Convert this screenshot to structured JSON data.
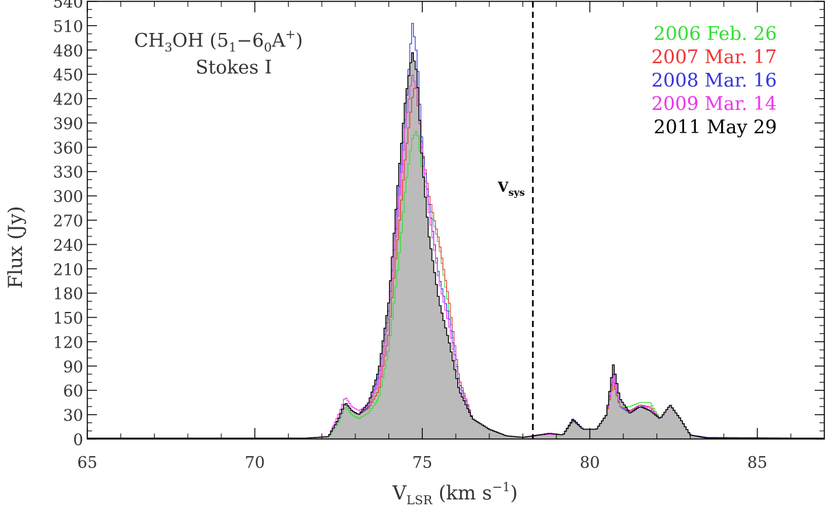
{
  "chart_data": {
    "type": "line",
    "title_main": "CH",
    "title_sub3": "3",
    "title_oh": "OH (5",
    "title_sub1": "1",
    "title_dash": "−6",
    "title_sub0": "0",
    "title_a": "A",
    "title_sup": "+",
    "title_close": ")",
    "subtitle": "Stokes I",
    "ylabel": "Flux (Jy)",
    "xlabel_v": "V",
    "xlabel_sub": "LSR",
    "xlabel_units": " (km s",
    "xlabel_sup": "−1",
    "xlabel_close": ")",
    "vsys_label_v": "V",
    "vsys_label_sub": "sys",
    "vsys": 78.3,
    "xlim": [
      65,
      87
    ],
    "ylim": [
      0,
      540
    ],
    "xticks": [
      65,
      70,
      75,
      80,
      85
    ],
    "yticks": [
      0,
      30,
      60,
      90,
      120,
      150,
      180,
      210,
      240,
      270,
      300,
      330,
      360,
      390,
      420,
      450,
      480,
      510,
      540
    ],
    "legend_position": "top-right",
    "series": [
      {
        "name": "2006 Feb. 26",
        "color": "#33dd33",
        "points": [
          [
            65,
            1
          ],
          [
            71.5,
            1
          ],
          [
            72.2,
            3
          ],
          [
            72.5,
            20
          ],
          [
            72.7,
            40
          ],
          [
            72.9,
            30
          ],
          [
            73.1,
            25
          ],
          [
            73.4,
            32
          ],
          [
            73.7,
            50
          ],
          [
            74.0,
            110
          ],
          [
            74.3,
            220
          ],
          [
            74.5,
            310
          ],
          [
            74.7,
            370
          ],
          [
            74.85,
            382
          ],
          [
            75.0,
            330
          ],
          [
            75.2,
            290
          ],
          [
            75.5,
            240
          ],
          [
            75.8,
            160
          ],
          [
            76.1,
            70
          ],
          [
            76.5,
            25
          ],
          [
            77.0,
            12
          ],
          [
            77.5,
            4
          ],
          [
            78.0,
            2
          ],
          [
            78.8,
            6
          ],
          [
            79.2,
            5
          ],
          [
            79.5,
            22
          ],
          [
            79.8,
            12
          ],
          [
            80.2,
            12
          ],
          [
            80.5,
            30
          ],
          [
            80.7,
            75
          ],
          [
            80.9,
            40
          ],
          [
            81.2,
            40
          ],
          [
            81.5,
            45
          ],
          [
            81.8,
            45
          ],
          [
            82.1,
            25
          ],
          [
            82.4,
            42
          ],
          [
            82.7,
            25
          ],
          [
            83.0,
            5
          ],
          [
            83.5,
            1
          ],
          [
            87,
            1
          ]
        ]
      },
      {
        "name": "2007 Mar. 17",
        "color": "#ee3333",
        "points": [
          [
            65,
            1
          ],
          [
            71.5,
            1
          ],
          [
            72.2,
            3
          ],
          [
            72.5,
            25
          ],
          [
            72.7,
            45
          ],
          [
            72.9,
            35
          ],
          [
            73.1,
            30
          ],
          [
            73.4,
            38
          ],
          [
            73.7,
            60
          ],
          [
            74.0,
            130
          ],
          [
            74.3,
            260
          ],
          [
            74.5,
            350
          ],
          [
            74.7,
            420
          ],
          [
            74.8,
            440
          ],
          [
            75.0,
            360
          ],
          [
            75.2,
            300
          ],
          [
            75.5,
            245
          ],
          [
            75.8,
            170
          ],
          [
            76.1,
            75
          ],
          [
            76.5,
            25
          ],
          [
            77.0,
            12
          ],
          [
            77.5,
            4
          ],
          [
            78.0,
            2
          ],
          [
            78.8,
            6
          ],
          [
            79.2,
            5
          ],
          [
            79.5,
            23
          ],
          [
            79.8,
            12
          ],
          [
            80.2,
            12
          ],
          [
            80.5,
            30
          ],
          [
            80.7,
            70
          ],
          [
            80.9,
            40
          ],
          [
            81.2,
            35
          ],
          [
            81.5,
            42
          ],
          [
            81.8,
            40
          ],
          [
            82.1,
            25
          ],
          [
            82.4,
            42
          ],
          [
            82.7,
            25
          ],
          [
            83.0,
            5
          ],
          [
            83.5,
            1
          ],
          [
            87,
            1
          ]
        ]
      },
      {
        "name": "2008 Mar. 16",
        "color": "#3333dd",
        "points": [
          [
            65,
            1
          ],
          [
            71.5,
            1
          ],
          [
            72.2,
            3
          ],
          [
            72.5,
            25
          ],
          [
            72.7,
            45
          ],
          [
            72.9,
            35
          ],
          [
            73.1,
            30
          ],
          [
            73.4,
            40
          ],
          [
            73.7,
            80
          ],
          [
            74.0,
            160
          ],
          [
            74.3,
            300
          ],
          [
            74.5,
            400
          ],
          [
            74.7,
            515
          ],
          [
            74.85,
            470
          ],
          [
            75.0,
            360
          ],
          [
            75.2,
            290
          ],
          [
            75.5,
            200
          ],
          [
            75.8,
            150
          ],
          [
            76.1,
            70
          ],
          [
            76.5,
            25
          ],
          [
            77.0,
            12
          ],
          [
            77.5,
            4
          ],
          [
            78.0,
            2
          ],
          [
            78.8,
            6
          ],
          [
            79.2,
            5
          ],
          [
            79.5,
            25
          ],
          [
            79.8,
            12
          ],
          [
            80.2,
            12
          ],
          [
            80.5,
            30
          ],
          [
            80.7,
            80
          ],
          [
            80.9,
            40
          ],
          [
            81.2,
            32
          ],
          [
            81.5,
            42
          ],
          [
            81.8,
            35
          ],
          [
            82.1,
            25
          ],
          [
            82.4,
            42
          ],
          [
            82.7,
            25
          ],
          [
            83.0,
            5
          ],
          [
            83.5,
            2
          ],
          [
            87,
            1
          ]
        ]
      },
      {
        "name": "2009 Mar. 14",
        "color": "#ee33ee",
        "points": [
          [
            65,
            1
          ],
          [
            71.5,
            1
          ],
          [
            72.2,
            3
          ],
          [
            72.5,
            30
          ],
          [
            72.7,
            52
          ],
          [
            72.9,
            40
          ],
          [
            73.1,
            35
          ],
          [
            73.4,
            42
          ],
          [
            73.7,
            70
          ],
          [
            74.0,
            150
          ],
          [
            74.3,
            290
          ],
          [
            74.5,
            390
          ],
          [
            74.7,
            450
          ],
          [
            74.85,
            430
          ],
          [
            75.0,
            350
          ],
          [
            75.2,
            280
          ],
          [
            75.5,
            195
          ],
          [
            75.8,
            140
          ],
          [
            76.1,
            65
          ],
          [
            76.5,
            25
          ],
          [
            77.0,
            12
          ],
          [
            77.5,
            4
          ],
          [
            78.0,
            2
          ],
          [
            78.8,
            6
          ],
          [
            79.2,
            5
          ],
          [
            79.5,
            24
          ],
          [
            79.8,
            12
          ],
          [
            80.2,
            12
          ],
          [
            80.5,
            30
          ],
          [
            80.7,
            78
          ],
          [
            80.9,
            40
          ],
          [
            81.2,
            34
          ],
          [
            81.5,
            42
          ],
          [
            81.8,
            38
          ],
          [
            82.1,
            25
          ],
          [
            82.4,
            42
          ],
          [
            82.7,
            25
          ],
          [
            83.0,
            5
          ],
          [
            83.5,
            1
          ],
          [
            87,
            1
          ]
        ]
      },
      {
        "name": "2011 May 29",
        "color": "#000000",
        "fill": "#bbbbbb",
        "points": [
          [
            65,
            1
          ],
          [
            71.5,
            1
          ],
          [
            72.2,
            3
          ],
          [
            72.5,
            25
          ],
          [
            72.7,
            45
          ],
          [
            72.9,
            35
          ],
          [
            73.1,
            30
          ],
          [
            73.4,
            45
          ],
          [
            73.7,
            85
          ],
          [
            74.0,
            170
          ],
          [
            74.3,
            330
          ],
          [
            74.5,
            420
          ],
          [
            74.7,
            478
          ],
          [
            74.85,
            450
          ],
          [
            75.0,
            340
          ],
          [
            75.2,
            250
          ],
          [
            75.5,
            170
          ],
          [
            75.8,
            120
          ],
          [
            76.1,
            60
          ],
          [
            76.5,
            25
          ],
          [
            77.0,
            12
          ],
          [
            77.5,
            4
          ],
          [
            78.0,
            2
          ],
          [
            78.8,
            7
          ],
          [
            79.2,
            5
          ],
          [
            79.5,
            24
          ],
          [
            79.8,
            12
          ],
          [
            80.2,
            12
          ],
          [
            80.5,
            30
          ],
          [
            80.7,
            92
          ],
          [
            80.9,
            50
          ],
          [
            81.2,
            32
          ],
          [
            81.5,
            40
          ],
          [
            81.8,
            35
          ],
          [
            82.1,
            25
          ],
          [
            82.4,
            42
          ],
          [
            82.7,
            25
          ],
          [
            83.0,
            5
          ],
          [
            83.5,
            1
          ],
          [
            87,
            1
          ]
        ]
      }
    ]
  }
}
